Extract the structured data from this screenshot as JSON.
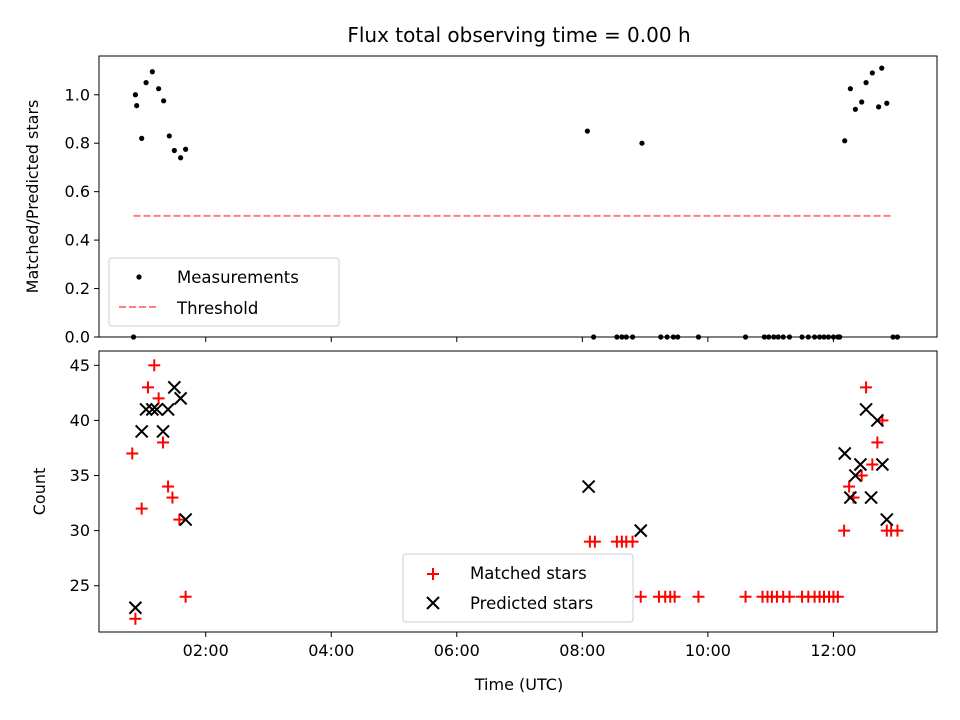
{
  "chart_data": [
    {
      "type": "scatter",
      "title": "Flux total observing time = 0.00 h",
      "xlabel": "",
      "ylabel": "Matched/Predicted stars",
      "ylim": [
        0,
        1.16
      ],
      "xlim_hours": [
        0.3,
        13.65
      ],
      "yticks": [
        0.0,
        0.2,
        0.4,
        0.6,
        0.8,
        1.0
      ],
      "yticklabels": [
        "0.0",
        "0.2",
        "0.4",
        "0.6",
        "0.8",
        "1.0"
      ],
      "xticks_hours": [
        2,
        4,
        6,
        8,
        10,
        12
      ],
      "show_xticklabels": false,
      "legend": {
        "placement": "lower-left",
        "entries": [
          "Measurements",
          "Threshold"
        ]
      },
      "colors": {
        "measurements": "#000000",
        "threshold": "#ff7f7f"
      },
      "series": [
        {
          "name": "Measurements",
          "marker": "dot",
          "points": [
            [
              0.88,
              1.0
            ],
            [
              0.9,
              0.955
            ],
            [
              0.98,
              0.82
            ],
            [
              1.05,
              1.05
            ],
            [
              1.15,
              1.095
            ],
            [
              1.25,
              1.025
            ],
            [
              1.33,
              0.975
            ],
            [
              1.42,
              0.83
            ],
            [
              1.5,
              0.77
            ],
            [
              1.6,
              0.74
            ],
            [
              1.68,
              0.775
            ],
            [
              0.85,
              0.0
            ],
            [
              8.08,
              0.85
            ],
            [
              8.18,
              0.0
            ],
            [
              8.55,
              0.0
            ],
            [
              8.63,
              0.0
            ],
            [
              8.7,
              0.0
            ],
            [
              8.8,
              0.0
            ],
            [
              8.95,
              0.8
            ],
            [
              9.25,
              0.0
            ],
            [
              9.35,
              0.0
            ],
            [
              9.45,
              0.0
            ],
            [
              9.52,
              0.0
            ],
            [
              9.85,
              0.0
            ],
            [
              10.6,
              0.0
            ],
            [
              10.9,
              0.0
            ],
            [
              10.97,
              0.0
            ],
            [
              11.05,
              0.0
            ],
            [
              11.12,
              0.0
            ],
            [
              11.2,
              0.0
            ],
            [
              11.3,
              0.0
            ],
            [
              11.5,
              0.0
            ],
            [
              11.6,
              0.0
            ],
            [
              11.7,
              0.0
            ],
            [
              11.78,
              0.0
            ],
            [
              11.85,
              0.0
            ],
            [
              11.92,
              0.0
            ],
            [
              12.0,
              0.0
            ],
            [
              12.07,
              0.0
            ],
            [
              12.1,
              0.0
            ],
            [
              12.18,
              0.81
            ],
            [
              12.27,
              1.025
            ],
            [
              12.35,
              0.94
            ],
            [
              12.45,
              0.97
            ],
            [
              12.52,
              1.05
            ],
            [
              12.62,
              1.09
            ],
            [
              12.72,
              0.95
            ],
            [
              12.77,
              1.11
            ],
            [
              12.85,
              0.965
            ],
            [
              12.95,
              0.0
            ],
            [
              13.02,
              0.0
            ]
          ]
        },
        {
          "name": "Threshold",
          "marker": "dashed-line",
          "points": [
            [
              0.85,
              0.5
            ],
            [
              12.95,
              0.5
            ]
          ]
        }
      ]
    },
    {
      "type": "scatter",
      "title": "",
      "xlabel": "Time (UTC)",
      "ylabel": "Count",
      "ylim": [
        20.8,
        46.3
      ],
      "xlim_hours": [
        0.3,
        13.65
      ],
      "yticks": [
        25,
        30,
        35,
        40,
        45
      ],
      "yticklabels": [
        "25",
        "30",
        "35",
        "40",
        "45"
      ],
      "xticks_hours": [
        2,
        4,
        6,
        8,
        10,
        12
      ],
      "xticklabels": [
        "02:00",
        "04:00",
        "06:00",
        "08:00",
        "10:00",
        "12:00"
      ],
      "legend": {
        "placement": "lower-center",
        "entries": [
          "Matched stars",
          "Predicted stars"
        ]
      },
      "colors": {
        "matched": "#ff0000",
        "predicted": "#000000"
      },
      "series": [
        {
          "name": "Matched stars",
          "marker": "plus",
          "points": [
            [
              0.83,
              37
            ],
            [
              0.88,
              22
            ],
            [
              0.98,
              32
            ],
            [
              1.08,
              43
            ],
            [
              1.18,
              45
            ],
            [
              1.25,
              42
            ],
            [
              1.32,
              38
            ],
            [
              1.4,
              34
            ],
            [
              1.47,
              33
            ],
            [
              1.58,
              31
            ],
            [
              1.68,
              24
            ],
            [
              8.12,
              29
            ],
            [
              8.2,
              29
            ],
            [
              8.55,
              29
            ],
            [
              8.63,
              29
            ],
            [
              8.7,
              29
            ],
            [
              8.8,
              29
            ],
            [
              8.93,
              24
            ],
            [
              9.22,
              24
            ],
            [
              9.32,
              24
            ],
            [
              9.4,
              24
            ],
            [
              9.47,
              24
            ],
            [
              9.85,
              24
            ],
            [
              10.6,
              24
            ],
            [
              10.87,
              24
            ],
            [
              10.95,
              24
            ],
            [
              11.02,
              24
            ],
            [
              11.1,
              24
            ],
            [
              11.2,
              24
            ],
            [
              11.3,
              24
            ],
            [
              11.5,
              24
            ],
            [
              11.6,
              24
            ],
            [
              11.7,
              24
            ],
            [
              11.78,
              24
            ],
            [
              11.85,
              24
            ],
            [
              11.93,
              24
            ],
            [
              12.0,
              24
            ],
            [
              12.07,
              24
            ],
            [
              12.17,
              30
            ],
            [
              12.25,
              34
            ],
            [
              12.32,
              33
            ],
            [
              12.45,
              35
            ],
            [
              12.52,
              43
            ],
            [
              12.62,
              36
            ],
            [
              12.7,
              38
            ],
            [
              12.78,
              40
            ],
            [
              12.85,
              30
            ],
            [
              12.92,
              30
            ],
            [
              13.02,
              30
            ]
          ]
        },
        {
          "name": "Predicted stars",
          "marker": "x",
          "points": [
            [
              0.88,
              23
            ],
            [
              0.98,
              39
            ],
            [
              1.05,
              41
            ],
            [
              1.15,
              41
            ],
            [
              1.22,
              41
            ],
            [
              1.32,
              39
            ],
            [
              1.4,
              41
            ],
            [
              1.5,
              43
            ],
            [
              1.6,
              42
            ],
            [
              1.68,
              31
            ],
            [
              8.1,
              34
            ],
            [
              8.93,
              30
            ],
            [
              12.18,
              37
            ],
            [
              12.27,
              33
            ],
            [
              12.35,
              35
            ],
            [
              12.43,
              36
            ],
            [
              12.52,
              41
            ],
            [
              12.6,
              33
            ],
            [
              12.7,
              40
            ],
            [
              12.78,
              36
            ],
            [
              12.85,
              31
            ]
          ]
        }
      ]
    }
  ]
}
